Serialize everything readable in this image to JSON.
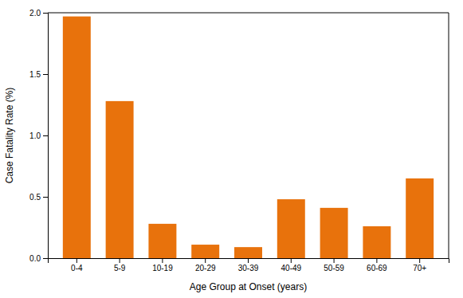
{
  "chart_data": {
    "type": "bar",
    "categories": [
      "0-4",
      "5-9",
      "10-19",
      "20-29",
      "30-39",
      "40-49",
      "50-59",
      "60-69",
      "70+"
    ],
    "values": [
      1.97,
      1.28,
      0.28,
      0.11,
      0.09,
      0.48,
      0.41,
      0.26,
      0.65
    ],
    "color": "#E8720C",
    "xlabel": "Age Group at Onset (years)",
    "ylabel": "Case Fatality Rate (%)",
    "ylim": [
      0,
      2.0
    ],
    "yticks": [
      {
        "value": 0,
        "label": "0.0"
      },
      0.5,
      {
        "value": 1,
        "label": "1.0"
      },
      1.5,
      {
        "value": 2,
        "label": "2.0"
      }
    ]
  }
}
